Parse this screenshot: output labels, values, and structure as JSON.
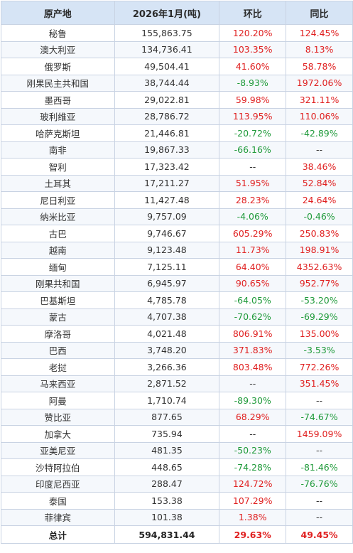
{
  "table": {
    "headers": {
      "origin": "原产地",
      "volume": "2026年1月(吨)",
      "mom": "环比",
      "yoy": "同比"
    },
    "rows": [
      {
        "origin": "秘鲁",
        "volume": "155,863.75",
        "mom": "120.20%",
        "yoy": "124.45%"
      },
      {
        "origin": "澳大利亚",
        "volume": "134,736.41",
        "mom": "103.35%",
        "yoy": "8.13%"
      },
      {
        "origin": "俄罗斯",
        "volume": "49,504.41",
        "mom": "41.60%",
        "yoy": "58.78%"
      },
      {
        "origin": "刚果民主共和国",
        "volume": "38,744.44",
        "mom": "-8.93%",
        "yoy": "1972.06%"
      },
      {
        "origin": "墨西哥",
        "volume": "29,022.81",
        "mom": "59.98%",
        "yoy": "321.11%"
      },
      {
        "origin": "玻利维亚",
        "volume": "28,786.72",
        "mom": "113.95%",
        "yoy": "110.06%"
      },
      {
        "origin": "哈萨克斯坦",
        "volume": "21,446.81",
        "mom": "-20.72%",
        "yoy": "-42.89%"
      },
      {
        "origin": "南非",
        "volume": "19,867.33",
        "mom": "-66.16%",
        "yoy": "--"
      },
      {
        "origin": "智利",
        "volume": "17,323.42",
        "mom": "--",
        "yoy": "38.46%"
      },
      {
        "origin": "土耳其",
        "volume": "17,211.27",
        "mom": "51.95%",
        "yoy": "52.84%"
      },
      {
        "origin": "尼日利亚",
        "volume": "11,427.48",
        "mom": "28.23%",
        "yoy": "24.64%"
      },
      {
        "origin": "纳米比亚",
        "volume": "9,757.09",
        "mom": "-4.06%",
        "yoy": "-0.46%"
      },
      {
        "origin": "古巴",
        "volume": "9,746.67",
        "mom": "605.29%",
        "yoy": "250.83%"
      },
      {
        "origin": "越南",
        "volume": "9,123.48",
        "mom": "11.73%",
        "yoy": "198.91%"
      },
      {
        "origin": "缅甸",
        "volume": "7,125.11",
        "mom": "64.40%",
        "yoy": "4352.63%"
      },
      {
        "origin": "刚果共和国",
        "volume": "6,945.97",
        "mom": "90.65%",
        "yoy": "952.77%"
      },
      {
        "origin": "巴基斯坦",
        "volume": "4,785.78",
        "mom": "-64.05%",
        "yoy": "-53.20%"
      },
      {
        "origin": "蒙古",
        "volume": "4,707.38",
        "mom": "-70.62%",
        "yoy": "-69.29%"
      },
      {
        "origin": "摩洛哥",
        "volume": "4,021.48",
        "mom": "806.91%",
        "yoy": "135.00%"
      },
      {
        "origin": "巴西",
        "volume": "3,748.20",
        "mom": "371.83%",
        "yoy": "-3.53%"
      },
      {
        "origin": "老挝",
        "volume": "3,266.36",
        "mom": "803.48%",
        "yoy": "772.26%"
      },
      {
        "origin": "马来西亚",
        "volume": "2,871.52",
        "mom": "--",
        "yoy": "351.45%"
      },
      {
        "origin": "阿曼",
        "volume": "1,710.74",
        "mom": "-89.30%",
        "yoy": "--"
      },
      {
        "origin": "赞比亚",
        "volume": "877.65",
        "mom": "68.29%",
        "yoy": "-74.67%"
      },
      {
        "origin": "加拿大",
        "volume": "735.94",
        "mom": "--",
        "yoy": "1459.09%"
      },
      {
        "origin": "亚美尼亚",
        "volume": "481.35",
        "mom": "-50.23%",
        "yoy": "--"
      },
      {
        "origin": "沙特阿拉伯",
        "volume": "448.65",
        "mom": "-74.28%",
        "yoy": "-81.46%"
      },
      {
        "origin": "印度尼西亚",
        "volume": "288.47",
        "mom": "124.72%",
        "yoy": "-76.76%"
      },
      {
        "origin": "泰国",
        "volume": "153.38",
        "mom": "107.29%",
        "yoy": "--"
      },
      {
        "origin": "菲律宾",
        "volume": "101.38",
        "mom": "1.38%",
        "yoy": "--"
      }
    ],
    "total": {
      "origin": "总计",
      "volume": "594,831.44",
      "mom": "29.63%",
      "yoy": "49.45%"
    }
  },
  "colors": {
    "header_bg": "#d6e4f5",
    "border": "#c9d3e3",
    "positive": "#e02020",
    "negative": "#1f9a3a",
    "neutral": "#333333"
  }
}
